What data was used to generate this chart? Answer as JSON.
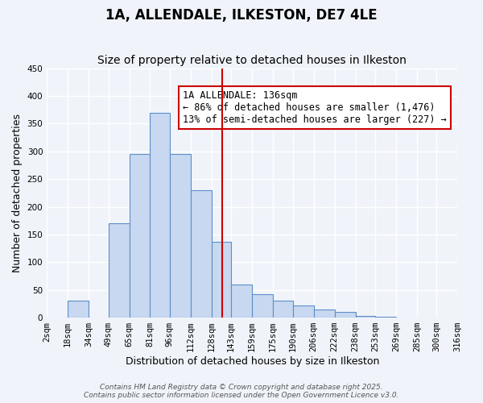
{
  "title": "1A, ALLENDALE, ILKESTON, DE7 4LE",
  "subtitle": "Size of property relative to detached houses in Ilkeston",
  "xlabel": "Distribution of detached houses by size in Ilkeston",
  "ylabel": "Number of detached properties",
  "bin_labels": [
    "2sqm",
    "18sqm",
    "34sqm",
    "49sqm",
    "65sqm",
    "81sqm",
    "96sqm",
    "112sqm",
    "128sqm",
    "143sqm",
    "159sqm",
    "175sqm",
    "190sqm",
    "206sqm",
    "222sqm",
    "238sqm",
    "253sqm",
    "269sqm",
    "285sqm",
    "300sqm",
    "316sqm"
  ],
  "bin_edges": [
    2,
    18,
    34,
    49,
    65,
    81,
    96,
    112,
    128,
    143,
    159,
    175,
    190,
    206,
    222,
    238,
    253,
    269,
    285,
    300,
    316
  ],
  "bar_heights": [
    0,
    30,
    0,
    170,
    295,
    370,
    295,
    230,
    137,
    60,
    42,
    30,
    22,
    14,
    10,
    3,
    1,
    0,
    0,
    0
  ],
  "bar_color": "#c8d8f0",
  "bar_edge_color": "#5b8fc9",
  "vline_x": 136,
  "vline_color": "#cc0000",
  "annotation_title": "1A ALLENDALE: 136sqm",
  "annotation_line1": "← 86% of detached houses are smaller (1,476)",
  "annotation_line2": "13% of semi-detached houses are larger (227) →",
  "annotation_box_color": "#cc0000",
  "annotation_bg": "#ffffff",
  "ylim": [
    0,
    450
  ],
  "yticks": [
    0,
    50,
    100,
    150,
    200,
    250,
    300,
    350,
    400,
    450
  ],
  "footer1": "Contains HM Land Registry data © Crown copyright and database right 2025.",
  "footer2": "Contains public sector information licensed under the Open Government Licence v3.0.",
  "background_color": "#f0f4fa",
  "grid_color": "#ffffff",
  "title_fontsize": 12,
  "subtitle_fontsize": 10,
  "axis_label_fontsize": 9,
  "tick_fontsize": 7.5,
  "annotation_fontsize": 8.5,
  "footer_fontsize": 6.5
}
